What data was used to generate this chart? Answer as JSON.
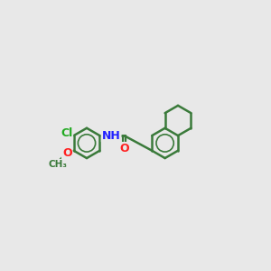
{
  "bg_color": "#e8e8e8",
  "bond_color": "#3a7a3a",
  "atom_colors": {
    "N": "#2020ff",
    "O": "#ff2020",
    "S": "#cccc00",
    "Cl": "#22aa22",
    "H": "#2020ff"
  },
  "bond_lw": 1.8,
  "font_size": 8.5,
  "ring_r": 0.72
}
